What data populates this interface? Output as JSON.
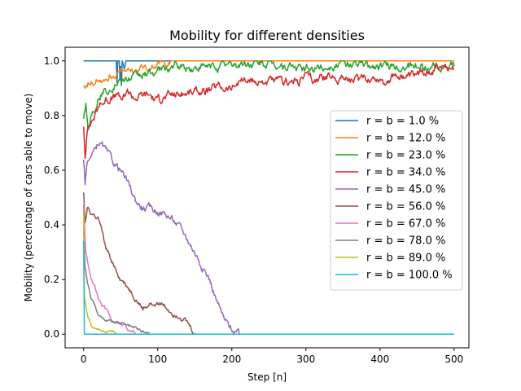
{
  "chart_data": {
    "type": "line",
    "title": "Mobility for different densities",
    "xlabel": "Step [n]",
    "ylabel": "Mobility (percentage of cars able to move)",
    "xlim": [
      -25,
      520
    ],
    "ylim": [
      -0.05,
      1.05
    ],
    "xticks": [
      0,
      100,
      200,
      300,
      400,
      500
    ],
    "yticks": [
      0.0,
      0.2,
      0.4,
      0.6,
      0.8,
      1.0
    ],
    "grid": false,
    "legend_position": "center-right",
    "series": [
      {
        "name": "r = b = 1.0 %",
        "color": "#1f77b4",
        "noise": 0,
        "points": [
          [
            0,
            1.0
          ],
          [
            44,
            1.0
          ],
          [
            45,
            0.92
          ],
          [
            46,
            1.0
          ],
          [
            48,
            1.0
          ],
          [
            49,
            0.93
          ],
          [
            50,
            0.98
          ],
          [
            51,
            0.91
          ],
          [
            52,
            1.0
          ],
          [
            55,
            0.97
          ],
          [
            57,
            1.0
          ],
          [
            500,
            1.0
          ]
        ]
      },
      {
        "name": "r = b = 12.0 %",
        "color": "#ff7f0e",
        "noise": 0.01,
        "points": [
          [
            0,
            0.91
          ],
          [
            10,
            0.93
          ],
          [
            20,
            0.93
          ],
          [
            30,
            0.94
          ],
          [
            40,
            0.95
          ],
          [
            50,
            0.96
          ],
          [
            60,
            0.96
          ],
          [
            80,
            0.97
          ],
          [
            100,
            0.99
          ],
          [
            120,
            1.0
          ],
          [
            200,
            1.0
          ],
          [
            300,
            1.0
          ],
          [
            400,
            1.0
          ],
          [
            500,
            1.0
          ]
        ]
      },
      {
        "name": "r = b = 23.0 %",
        "color": "#2ca02c",
        "noise": 0.012,
        "points": [
          [
            0,
            0.8
          ],
          [
            3,
            0.85
          ],
          [
            6,
            0.75
          ],
          [
            10,
            0.8
          ],
          [
            15,
            0.83
          ],
          [
            20,
            0.87
          ],
          [
            30,
            0.89
          ],
          [
            40,
            0.91
          ],
          [
            50,
            0.93
          ],
          [
            60,
            0.93
          ],
          [
            70,
            0.94
          ],
          [
            80,
            0.95
          ],
          [
            100,
            0.96
          ],
          [
            120,
            0.98
          ],
          [
            150,
            0.97
          ],
          [
            200,
            0.99
          ],
          [
            250,
            0.99
          ],
          [
            300,
            0.97
          ],
          [
            350,
            0.99
          ],
          [
            400,
            0.98
          ],
          [
            450,
            0.98
          ],
          [
            500,
            0.98
          ]
        ]
      },
      {
        "name": "r = b = 34.0 %",
        "color": "#d62728",
        "noise": 0.012,
        "points": [
          [
            0,
            0.76
          ],
          [
            2,
            0.66
          ],
          [
            5,
            0.75
          ],
          [
            10,
            0.78
          ],
          [
            20,
            0.83
          ],
          [
            30,
            0.86
          ],
          [
            40,
            0.87
          ],
          [
            50,
            0.86
          ],
          [
            60,
            0.88
          ],
          [
            70,
            0.87
          ],
          [
            80,
            0.88
          ],
          [
            90,
            0.88
          ],
          [
            100,
            0.85
          ],
          [
            110,
            0.87
          ],
          [
            120,
            0.88
          ],
          [
            130,
            0.88
          ],
          [
            150,
            0.89
          ],
          [
            170,
            0.89
          ],
          [
            180,
            0.91
          ],
          [
            200,
            0.9
          ],
          [
            210,
            0.93
          ],
          [
            230,
            0.92
          ],
          [
            250,
            0.93
          ],
          [
            270,
            0.92
          ],
          [
            290,
            0.93
          ],
          [
            300,
            0.95
          ],
          [
            310,
            0.93
          ],
          [
            330,
            0.94
          ],
          [
            350,
            0.94
          ],
          [
            370,
            0.93
          ],
          [
            390,
            0.94
          ],
          [
            410,
            0.93
          ],
          [
            420,
            0.95
          ],
          [
            440,
            0.94
          ],
          [
            460,
            0.96
          ],
          [
            480,
            0.98
          ],
          [
            500,
            0.97
          ]
        ]
      },
      {
        "name": "r = b = 45.0 %",
        "color": "#9467bd",
        "noise": 0.01,
        "points": [
          [
            0,
            0.63
          ],
          [
            2,
            0.55
          ],
          [
            5,
            0.64
          ],
          [
            10,
            0.65
          ],
          [
            15,
            0.67
          ],
          [
            20,
            0.7
          ],
          [
            25,
            0.69
          ],
          [
            30,
            0.67
          ],
          [
            40,
            0.63
          ],
          [
            50,
            0.6
          ],
          [
            60,
            0.55
          ],
          [
            70,
            0.49
          ],
          [
            80,
            0.46
          ],
          [
            90,
            0.46
          ],
          [
            100,
            0.45
          ],
          [
            110,
            0.44
          ],
          [
            120,
            0.42
          ],
          [
            130,
            0.39
          ],
          [
            140,
            0.35
          ],
          [
            150,
            0.3
          ],
          [
            160,
            0.25
          ],
          [
            170,
            0.2
          ],
          [
            180,
            0.12
          ],
          [
            190,
            0.05
          ],
          [
            200,
            0.02
          ],
          [
            210,
            0.0
          ],
          [
            500,
            0.0
          ]
        ]
      },
      {
        "name": "r = b = 56.0 %",
        "color": "#8c564b",
        "noise": 0.008,
        "points": [
          [
            0,
            0.52
          ],
          [
            2,
            0.42
          ],
          [
            5,
            0.47
          ],
          [
            10,
            0.44
          ],
          [
            20,
            0.42
          ],
          [
            30,
            0.31
          ],
          [
            40,
            0.26
          ],
          [
            50,
            0.2
          ],
          [
            60,
            0.17
          ],
          [
            70,
            0.13
          ],
          [
            80,
            0.09
          ],
          [
            90,
            0.11
          ],
          [
            100,
            0.12
          ],
          [
            110,
            0.1
          ],
          [
            120,
            0.08
          ],
          [
            130,
            0.07
          ],
          [
            140,
            0.04
          ],
          [
            150,
            0.0
          ],
          [
            500,
            0.0
          ]
        ]
      },
      {
        "name": "r = b = 67.0 %",
        "color": "#e377c2",
        "noise": 0.006,
        "points": [
          [
            0,
            0.47
          ],
          [
            3,
            0.3
          ],
          [
            5,
            0.27
          ],
          [
            10,
            0.2
          ],
          [
            15,
            0.17
          ],
          [
            20,
            0.13
          ],
          [
            30,
            0.09
          ],
          [
            40,
            0.05
          ],
          [
            50,
            0.04
          ],
          [
            60,
            0.02
          ],
          [
            70,
            0.0
          ],
          [
            500,
            0.0
          ]
        ]
      },
      {
        "name": "r = b = 78.0 %",
        "color": "#7f7f7f",
        "noise": 0.005,
        "points": [
          [
            0,
            0.38
          ],
          [
            2,
            0.24
          ],
          [
            5,
            0.19
          ],
          [
            10,
            0.13
          ],
          [
            15,
            0.1
          ],
          [
            20,
            0.07
          ],
          [
            30,
            0.05
          ],
          [
            40,
            0.04
          ],
          [
            50,
            0.04
          ],
          [
            60,
            0.03
          ],
          [
            70,
            0.02
          ],
          [
            80,
            0.01
          ],
          [
            90,
            0.0
          ],
          [
            500,
            0.0
          ]
        ]
      },
      {
        "name": "r = b = 89.0 %",
        "color": "#bcbd22",
        "noise": 0.004,
        "points": [
          [
            0,
            0.45
          ],
          [
            1,
            0.13
          ],
          [
            3,
            0.1
          ],
          [
            5,
            0.07
          ],
          [
            10,
            0.03
          ],
          [
            20,
            0.02
          ],
          [
            30,
            0.01
          ],
          [
            40,
            0.01
          ],
          [
            45,
            0.0
          ],
          [
            500,
            0.0
          ]
        ]
      },
      {
        "name": "r = b = 100.0 %",
        "color": "#17becf",
        "noise": 0,
        "points": [
          [
            0,
            0.34
          ],
          [
            1,
            0.0
          ],
          [
            500,
            0.0
          ]
        ]
      }
    ]
  }
}
